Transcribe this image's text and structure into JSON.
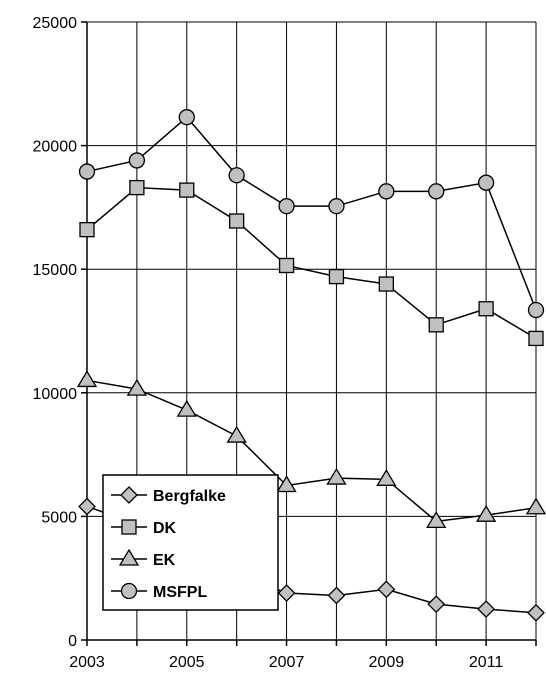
{
  "chart_data": {
    "type": "line",
    "title": "",
    "xlabel": "",
    "ylabel": "",
    "x": [
      2003,
      2004,
      2005,
      2006,
      2007,
      2008,
      2009,
      2010,
      2011,
      2012
    ],
    "xlim": [
      2003,
      2012
    ],
    "ylim": [
      0,
      25000
    ],
    "x_tick_labels": [
      "2003",
      "2005",
      "2007",
      "2009",
      "2011"
    ],
    "y_tick_labels": [
      "0",
      "5000",
      "10000",
      "15000",
      "20000",
      "25000"
    ],
    "grid": "vertical lines at each year, horizontal lines at each 5000",
    "legend_position": "lower-left",
    "marker_fill": "#c0c0c0",
    "series": [
      {
        "name": "Bergfalke",
        "marker": "diamond",
        "values": [
          5400,
          4700,
          3600,
          2700,
          1900,
          1800,
          2050,
          1450,
          1250,
          1100
        ]
      },
      {
        "name": "DK",
        "marker": "square",
        "values": [
          16600,
          18300,
          18200,
          16950,
          15150,
          14700,
          14400,
          12750,
          13400,
          12200
        ]
      },
      {
        "name": "EK",
        "marker": "triangle",
        "values": [
          10500,
          10150,
          9300,
          8250,
          6250,
          6550,
          6500,
          4800,
          5050,
          5350
        ]
      },
      {
        "name": "MSFPL",
        "marker": "circle",
        "values": [
          18950,
          19400,
          21150,
          18800,
          17550,
          17550,
          18150,
          18150,
          18500,
          13350
        ]
      }
    ]
  }
}
